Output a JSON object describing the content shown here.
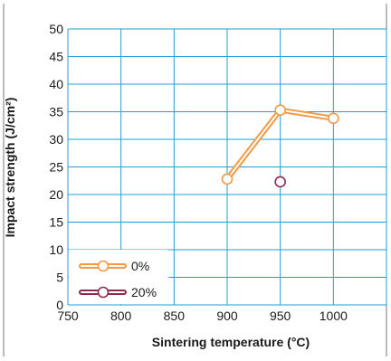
{
  "colors": {
    "grid": "#1e9fd8",
    "series_0": "#f29a45",
    "series_20": "#8b2c4e",
    "text": "#1a1a1a",
    "frame": "#7a7a7a"
  },
  "chart_data": {
    "type": "line",
    "xlabel": "Sintering temperature (°C)",
    "ylabel": "Impact strength (J/cm²)",
    "xlim": [
      750,
      1050
    ],
    "ylim": [
      0,
      50
    ],
    "x_ticks": [
      "750",
      "800",
      "850",
      "900",
      "950",
      "1000"
    ],
    "y_ticks": [
      "0",
      "5",
      "10",
      "15",
      "20",
      "25",
      "30",
      "35",
      "40",
      "45",
      "50"
    ],
    "grid": true,
    "legend_position": "bottom-left",
    "series": [
      {
        "name": "0%",
        "x": [
          900,
          950,
          1000
        ],
        "y": [
          22.8,
          35.3,
          33.8
        ]
      },
      {
        "name": "20%",
        "x": [
          950
        ],
        "y": [
          22.3
        ]
      }
    ]
  }
}
